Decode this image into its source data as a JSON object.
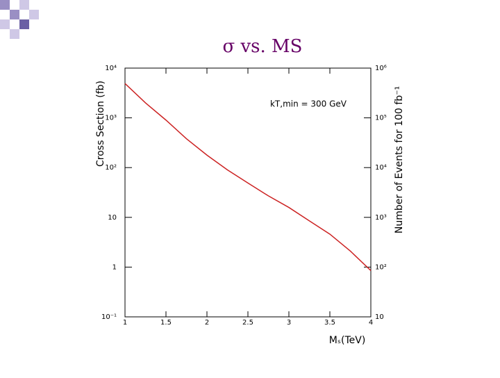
{
  "chart_data": {
    "type": "line",
    "title": "σ vs. MS",
    "x_label": "Mₛ(TeV)",
    "y_label": "Cross Section (fb)",
    "y2_label": "Number of Events for 100 fb⁻¹",
    "annotation": "kT,min = 300 GeV",
    "log_y": true,
    "x": [
      1,
      1.25,
      1.5,
      1.75,
      2,
      2.25,
      2.5,
      2.75,
      3,
      3.25,
      3.5,
      3.75,
      4
    ],
    "series": [
      {
        "name": "σ",
        "color": "#cc2222",
        "values": [
          4900,
          2000,
          900,
          380,
          178,
          90,
          49,
          27,
          15.8,
          8.5,
          4.6,
          2.1,
          0.85
        ]
      }
    ],
    "xlim": [
      1,
      4
    ],
    "xticks": [
      1,
      1.5,
      2,
      2.5,
      3,
      3.5,
      4
    ],
    "ylim": [
      0.1,
      10000
    ],
    "yticks": [
      {
        "value": 0.1,
        "label": "10⁻¹"
      },
      1,
      10,
      {
        "value": 100,
        "label": "10²"
      },
      {
        "value": 1000,
        "label": "10³"
      },
      {
        "value": 10000,
        "label": "10⁴"
      }
    ],
    "y2lim": [
      10,
      1000000
    ],
    "y2ticks": [
      10,
      {
        "value": 100,
        "label": "10²"
      },
      {
        "value": 1000,
        "label": "10³"
      },
      {
        "value": 10000,
        "label": "10⁴"
      },
      {
        "value": 100000,
        "label": "10⁵"
      },
      {
        "value": 1000000,
        "label": "10⁶"
      }
    ]
  }
}
